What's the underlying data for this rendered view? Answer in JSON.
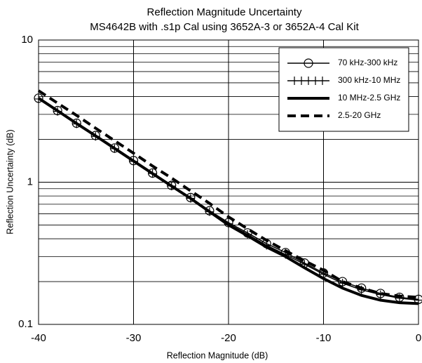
{
  "chart_data": {
    "type": "line",
    "title": "Reflection Magnitude Uncertainty",
    "subtitle": "MS4642B with .s1p Cal using 3652A-3 or 3652A-4 Cal Kit",
    "x_label": "Reflection Magnitude (dB)",
    "y_label": "Reflection Uncertainty (dB)",
    "x": [
      -40,
      -38,
      -36,
      -34,
      -32,
      -30,
      -28,
      -26,
      -24,
      -22,
      -20,
      -18,
      -16,
      -14,
      -12,
      -10,
      -8,
      -6,
      -4,
      -2,
      0
    ],
    "series": [
      {
        "name": "70 kHz-300 kHz",
        "color": "#000000",
        "marker": "circle",
        "dash": false,
        "width": 1.5,
        "values": [
          3.9,
          3.19,
          2.6,
          2.13,
          1.74,
          1.42,
          1.16,
          0.95,
          0.78,
          0.63,
          0.52,
          0.44,
          0.37,
          0.32,
          0.27,
          0.23,
          0.2,
          0.18,
          0.165,
          0.155,
          0.15
        ]
      },
      {
        "name": "300 kHz-10 MHz",
        "color": "#000000",
        "marker": "plus",
        "dash": false,
        "width": 1.5,
        "values": [
          3.85,
          3.15,
          2.57,
          2.1,
          1.72,
          1.4,
          1.15,
          0.94,
          0.77,
          0.62,
          0.51,
          0.43,
          0.36,
          0.31,
          0.265,
          0.225,
          0.195,
          0.175,
          0.162,
          0.153,
          0.148
        ]
      },
      {
        "name": "10 MHz-2.5 GHz",
        "color": "#000000",
        "marker": "none",
        "dash": false,
        "width": 4,
        "values": [
          3.9,
          3.18,
          2.59,
          2.12,
          1.73,
          1.41,
          1.15,
          0.94,
          0.77,
          0.62,
          0.5,
          0.42,
          0.35,
          0.3,
          0.25,
          0.21,
          0.18,
          0.16,
          0.148,
          0.142,
          0.14
        ]
      },
      {
        "name": "2.5-20 GHz",
        "color": "#000000",
        "marker": "none",
        "dash": true,
        "width": 4,
        "values": [
          4.4,
          3.6,
          2.95,
          2.4,
          1.96,
          1.6,
          1.3,
          1.07,
          0.87,
          0.71,
          0.57,
          0.47,
          0.39,
          0.33,
          0.28,
          0.24,
          0.2,
          0.18,
          0.165,
          0.158,
          0.155
        ]
      }
    ],
    "xlim": [
      -40,
      0
    ],
    "xticks": [
      -40,
      -30,
      -20,
      -10,
      0
    ],
    "ylim": [
      0.1,
      10
    ],
    "yticks": [
      0.1,
      1,
      10
    ],
    "ylog": true,
    "y_minor_ticks": [
      0.2,
      0.3,
      0.4,
      0.5,
      0.6,
      0.7,
      0.8,
      0.9,
      2,
      3,
      4,
      5,
      6,
      7,
      8,
      9
    ],
    "grid": true,
    "legend": "top-right"
  }
}
